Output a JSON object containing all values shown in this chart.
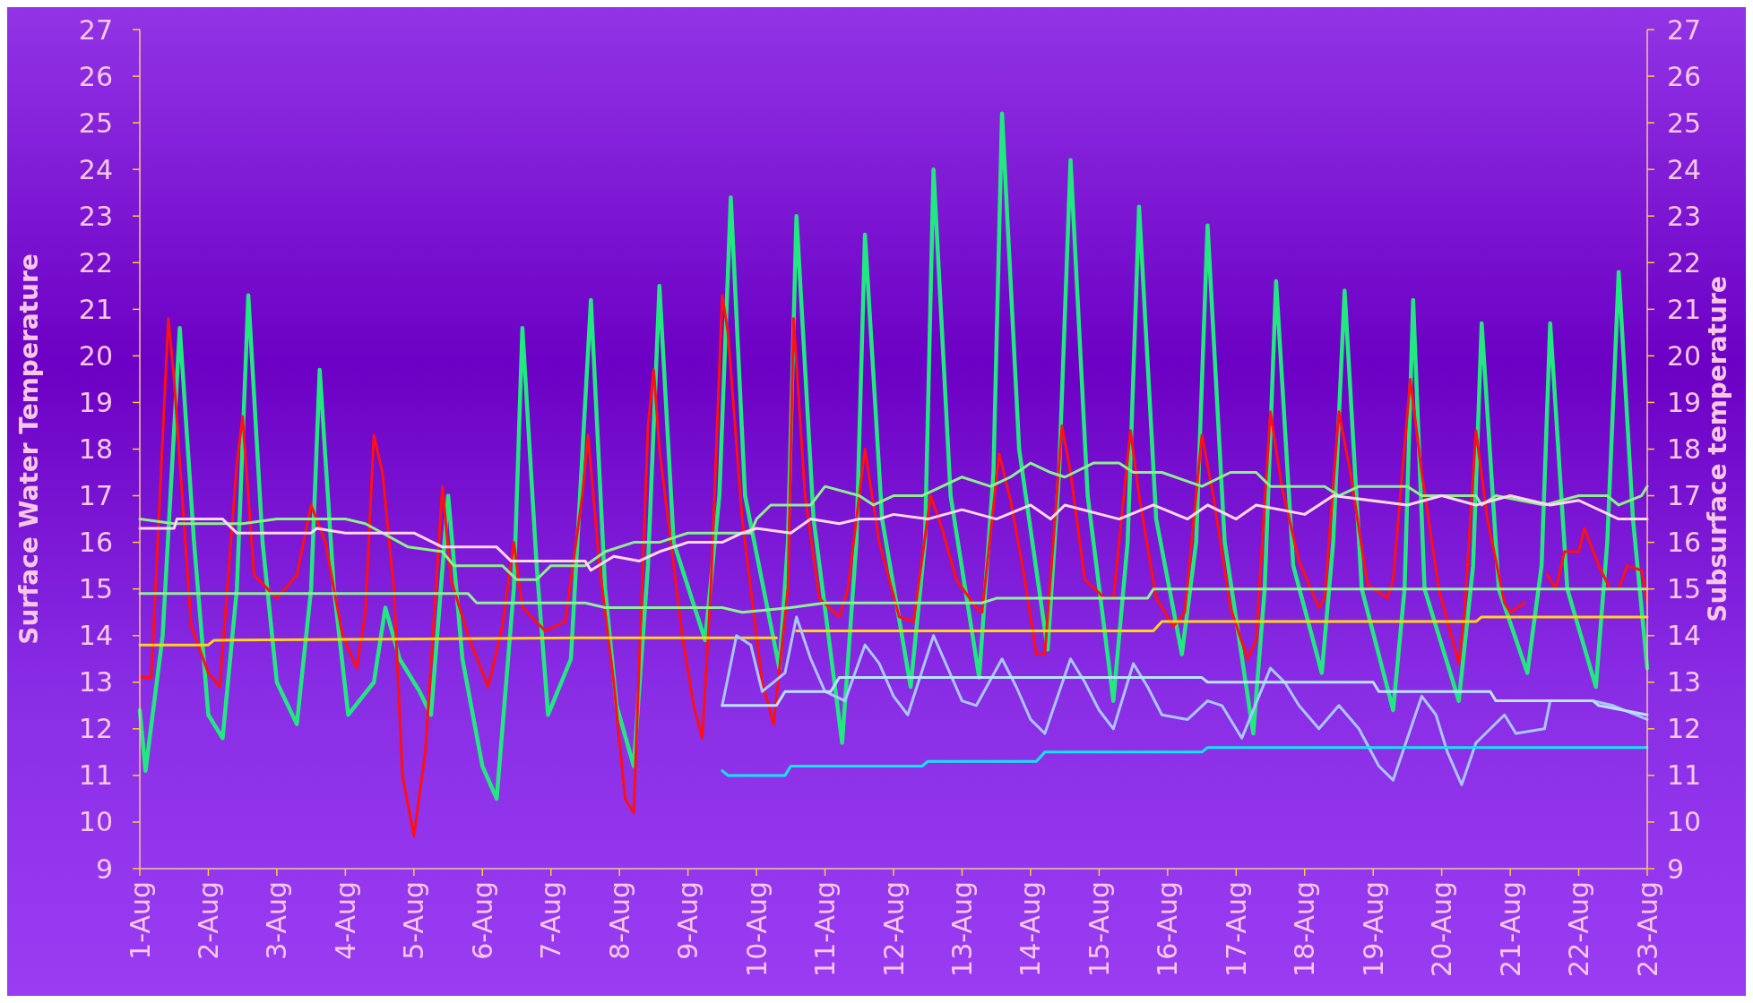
{
  "chart_data": {
    "type": "line",
    "ylabel": "Surface Water Temperature",
    "y2label": "Subsurface temperature",
    "xlim": [
      "--08-01",
      "--08-23"
    ],
    "ylim": [
      9,
      27
    ],
    "y2lim": [
      9,
      27
    ],
    "xticks": [
      {
        "value": "--08-01",
        "label": "1-Aug"
      },
      {
        "value": "--08-02",
        "label": "2-Aug"
      },
      {
        "value": "--08-03",
        "label": "3-Aug"
      },
      {
        "value": "--08-04",
        "label": "4-Aug"
      },
      {
        "value": "--08-05",
        "label": "5-Aug"
      },
      {
        "value": "--08-06",
        "label": "6-Aug"
      },
      {
        "value": "--08-07",
        "label": "7-Aug"
      },
      {
        "value": "--08-08",
        "label": "8-Aug"
      },
      {
        "value": "--08-09",
        "label": "9-Aug"
      },
      {
        "value": "--08-10",
        "label": "10-Aug"
      },
      {
        "value": "--08-11",
        "label": "11-Aug"
      },
      {
        "value": "--08-12",
        "label": "12-Aug"
      },
      {
        "value": "--08-13",
        "label": "13-Aug"
      },
      {
        "value": "--08-14",
        "label": "14-Aug"
      },
      {
        "value": "--08-15",
        "label": "15-Aug"
      },
      {
        "value": "--08-16",
        "label": "16-Aug"
      },
      {
        "value": "--08-17",
        "label": "17-Aug"
      },
      {
        "value": "--08-18",
        "label": "18-Aug"
      },
      {
        "value": "--08-19",
        "label": "19-Aug"
      },
      {
        "value": "--08-20",
        "label": "20-Aug"
      },
      {
        "value": "--08-21",
        "label": "21-Aug"
      },
      {
        "value": "--08-22",
        "label": "22-Aug"
      },
      {
        "value": "--08-23",
        "label": "23-Aug"
      }
    ],
    "yticks": [
      9,
      10,
      11,
      12,
      13,
      14,
      15,
      16,
      17,
      18,
      19,
      20,
      21,
      22,
      23,
      24,
      25,
      26,
      27
    ],
    "y2ticks": [
      9,
      10,
      11,
      12,
      13,
      14,
      15,
      16,
      17,
      18,
      19,
      20,
      21,
      22,
      23,
      24,
      25,
      26,
      27
    ],
    "grid": false,
    "series": [
      {
        "color": "#22e882",
        "x": [
          "--08-01T00:00",
          "--08-01T02:00",
          "--08-01T08:00",
          "--08-01T14:00",
          "--08-01T19:00",
          "--08-02T00:00",
          "--08-02T05:00",
          "--08-02T10:00",
          "--08-02T14:00",
          "--08-02T19:00",
          "--08-03T00:00",
          "--08-03T07:00",
          "--08-03T12:00",
          "--08-03T15:00",
          "--08-03T20:00",
          "--08-04T01:00",
          "--08-04T10:00",
          "--08-04T14:00",
          "--08-04T19:00",
          "--08-05T02:00",
          "--08-05T06:00",
          "--08-05T12:00",
          "--08-05T17:00",
          "--08-06T00:00",
          "--08-06T05:00",
          "--08-06T11:00",
          "--08-06T14:00",
          "--08-06T19:00",
          "--08-06T23:00",
          "--08-07T07:00",
          "--08-07T14:00",
          "--08-07T19:00",
          "--08-07T23:00",
          "--08-08T05:00",
          "--08-08T10:00",
          "--08-08T14:00",
          "--08-08T19:00",
          "--08-09T06:00",
          "--08-09T11:00",
          "--08-09T15:00",
          "--08-09T20:00",
          "--08-10T08:00",
          "--08-10T11:00",
          "--08-10T14:00",
          "--08-10T20:00",
          "--08-11T06:00",
          "--08-11T11:00",
          "--08-11T14:00",
          "--08-11T20:00",
          "--08-12T06:00",
          "--08-12T11:00",
          "--08-12T14:00",
          "--08-12T20:00",
          "--08-13T06:00",
          "--08-13T11:00",
          "--08-13T14:00",
          "--08-13T20:00",
          "--08-14T06:00",
          "--08-14T10:00",
          "--08-14T14:00",
          "--08-14T20:00",
          "--08-15T05:00",
          "--08-15T10:00",
          "--08-15T14:00",
          "--08-15T20:00",
          "--08-16T05:00",
          "--08-16T10:00",
          "--08-16T14:00",
          "--08-16T20:00",
          "--08-17T06:00",
          "--08-17T10:00",
          "--08-17T14:00",
          "--08-17T20:00",
          "--08-18T06:00",
          "--08-18T10:00",
          "--08-18T14:00",
          "--08-18T20:00",
          "--08-19T07:00",
          "--08-19T11:00",
          "--08-19T14:00",
          "--08-19T18:00",
          "--08-20T06:00",
          "--08-20T11:00",
          "--08-20T14:00",
          "--08-20T20:00",
          "--08-21T06:00",
          "--08-21T11:00",
          "--08-21T14:00",
          "--08-21T20:00",
          "--08-22T06:00",
          "--08-22T10:00",
          "--08-22T14:00",
          "--08-22T19:00",
          "--08-23T00:00"
        ],
        "values": [
          12.4,
          11.1,
          14.0,
          20.6,
          16.0,
          12.3,
          11.8,
          15.0,
          21.3,
          16.0,
          13.0,
          12.1,
          15.0,
          19.7,
          15.0,
          12.3,
          13.0,
          14.6,
          13.5,
          12.8,
          12.3,
          17.0,
          13.5,
          11.2,
          10.5,
          15.0,
          20.6,
          15.5,
          12.3,
          13.5,
          21.2,
          15.0,
          12.5,
          11.2,
          15.5,
          21.5,
          16.0,
          13.9,
          17.0,
          23.4,
          17.0,
          13.3,
          16.0,
          23.0,
          16.5,
          11.7,
          16.0,
          22.6,
          16.5,
          12.9,
          16.0,
          24.0,
          17.0,
          13.1,
          17.5,
          25.2,
          18.0,
          13.7,
          17.5,
          24.2,
          17.0,
          12.6,
          16.0,
          23.2,
          16.5,
          13.6,
          16.0,
          22.8,
          16.0,
          11.9,
          15.0,
          21.6,
          15.5,
          13.2,
          16.0,
          21.4,
          15.0,
          12.4,
          15.0,
          21.2,
          15.0,
          12.6,
          15.5,
          20.7,
          15.0,
          13.2,
          15.5,
          20.7,
          15.0,
          12.9,
          16.0,
          21.8,
          16.5,
          13.3
        ]
      },
      {
        "color": "#ff1010",
        "x": [
          "--08-01T00:00",
          "--08-01T04:00",
          "--08-01T10:00",
          "--08-01T12:00",
          "--08-01T18:00",
          "--08-02T00:00",
          "--08-02T04:00",
          "--08-02T10:00",
          "--08-02T12:00",
          "--08-02T16:00",
          "--08-03T00:00",
          "--08-03T07:00",
          "--08-03T12:00",
          "--08-03T17:00",
          "--08-03T23:00",
          "--08-04T04:00",
          "--08-04T07:00",
          "--08-04T10:00",
          "--08-04T13:00",
          "--08-04T17:00",
          "--08-04T20:00",
          "--08-05T00:00",
          "--08-05T04:00",
          "--08-05T10:00",
          "--08-05T13:00",
          "--08-05T19:00",
          "--08-06T02:00",
          "--08-06T07:00",
          "--08-06T11:00",
          "--08-06T14:00",
          "--08-06T22:00",
          "--08-07T05:00",
          "--08-07T11:00",
          "--08-07T13:00",
          "--08-07T17:00",
          "--08-07T22:00",
          "--08-08T02:00",
          "--08-08T05:00",
          "--08-08T10:00",
          "--08-08T12:00",
          "--08-08T14:00",
          "--08-08T22:00",
          "--08-09T02:00",
          "--08-09T05:00",
          "--08-09T08:00",
          "--08-09T12:00",
          "--08-09T14:00",
          "--08-09T19:00",
          "--08-10T02:00",
          "--08-10T06:00",
          "--08-10T11:00",
          "--08-10T13:00",
          "--08-10T17:00",
          "--08-10T22:00",
          "--08-11T05:00",
          "--08-11T08:00",
          "--08-11T14:00",
          "--08-11T19:00",
          "--08-12T02:00",
          "--08-12T07:00",
          "--08-12T13:00",
          "--08-12T17:00",
          "--08-12T22:00",
          "--08-13T05:00",
          "--08-13T07:00",
          "--08-13T13:00",
          "--08-13T17:00",
          "--08-13T22:00",
          "--08-14T02:00",
          "--08-14T05:00",
          "--08-14T11:00",
          "--08-14T14:00",
          "--08-14T19:00",
          "--08-15T02:00",
          "--08-15T05:00",
          "--08-15T11:00",
          "--08-15T14:00",
          "--08-15T20:00",
          "--08-16T02:00",
          "--08-16T06:00",
          "--08-16T12:00",
          "--08-16T16:00",
          "--08-16T22:00",
          "--08-17T04:00",
          "--08-17T07:00",
          "--08-17T12:00",
          "--08-17T16:00",
          "--08-17T22:00",
          "--08-18T05:00",
          "--08-18T07:00",
          "--08-18T12:00",
          "--08-18T16:00",
          "--08-18T22:00",
          "--08-19T05:00",
          "--08-19T07:00",
          "--08-19T13:00",
          "--08-19T17:00",
          "--08-19T23:00",
          "--08-20T06:00",
          "--08-20T08:00",
          "--08-20T12:00",
          "--08-20T16:00",
          "--08-20T22:00",
          "--08-21T00:00",
          "--08-21T05:00",
          "--08-21T08:00",
          "--08-21T13:00",
          "--08-21T16:00",
          "--08-21T19:00",
          "--08-22T00:00",
          "--08-22T02:00",
          "--08-22T07:00",
          "--08-22T11:00",
          "--08-22T14:00",
          "--08-22T17:00",
          "--08-22T22:00",
          "--08-23T00:00"
        ],
        "values": [
          13.1,
          13.1,
          20.8,
          19.5,
          14.2,
          13.2,
          12.9,
          17.7,
          18.7,
          15.3,
          14.8,
          15.3,
          16.8,
          16.0,
          14.0,
          13.3,
          14.5,
          18.3,
          17.5,
          15.0,
          11.0,
          9.7,
          11.5,
          17.2,
          15.2,
          14.0,
          12.9,
          14.2,
          16.0,
          14.6,
          14.1,
          14.3,
          17.0,
          18.3,
          15.5,
          13.0,
          10.5,
          10.2,
          18.5,
          19.7,
          18.0,
          14.0,
          12.5,
          11.8,
          15.0,
          21.3,
          20.5,
          16.5,
          13.0,
          12.1,
          15.0,
          20.8,
          17.0,
          14.8,
          14.4,
          15.0,
          18.0,
          16.0,
          14.4,
          14.3,
          17.0,
          16.3,
          15.2,
          14.6,
          14.5,
          17.9,
          16.9,
          15.2,
          13.6,
          13.6,
          18.5,
          17.5,
          15.2,
          14.8,
          14.8,
          18.4,
          17.0,
          14.8,
          14.2,
          14.5,
          18.3,
          17.0,
          14.6,
          13.5,
          13.9,
          18.8,
          17.2,
          15.6,
          14.6,
          14.8,
          18.8,
          17.5,
          15.1,
          14.8,
          15.2,
          19.5,
          17.5,
          15.0,
          13.4,
          14.5,
          18.4,
          16.5,
          14.7,
          14.5,
          14.7,
          null,
          15.3,
          15.0,
          15.8,
          15.8,
          16.3,
          15.5,
          15.0,
          15.0,
          15.5,
          15.4,
          14.7
        ]
      },
      {
        "color": "#8cf08c",
        "x": [
          "--08-01T00:00",
          "--08-01T12:00",
          "--08-02T12:00",
          "--08-03T00:00",
          "--08-04T00:00",
          "--08-04T07:00",
          "--08-04T22:00",
          "--08-05T10:00",
          "--08-05T14:00",
          "--08-06T07:00",
          "--08-06T12:00",
          "--08-06T19:00",
          "--08-07T00:00",
          "--08-07T12:00",
          "--08-07T19:00",
          "--08-08T05:00",
          "--08-08T14:00",
          "--08-09T00:00",
          "--08-09T22:00",
          "--08-10T00:00",
          "--08-10T05:00",
          "--08-10T19:00",
          "--08-11T00:00",
          "--08-11T12:00",
          "--08-11T17:00",
          "--08-12T00:00",
          "--08-12T10:00",
          "--08-12T17:00",
          "--08-13T00:00",
          "--08-13T10:00",
          "--08-13T17:00",
          "--08-14T00:00",
          "--08-14T07:00",
          "--08-14T12:00",
          "--08-14T22:00",
          "--08-15T07:00",
          "--08-15T12:00",
          "--08-15T22:00",
          "--08-16T12:00",
          "--08-16T22:00",
          "--08-17T07:00",
          "--08-17T12:00",
          "--08-18T07:00",
          "--08-18T12:00",
          "--08-18T19:00",
          "--08-19T12:00",
          "--08-19T17:00",
          "--08-20T12:00",
          "--08-20T14:00",
          "--08-20T19:00",
          "--08-21T12:00",
          "--08-22T00:00",
          "--08-22T10:00",
          "--08-22T14:00",
          "--08-22T22:00",
          "--08-23T00:00"
        ],
        "values": [
          16.5,
          16.4,
          16.4,
          16.5,
          16.5,
          16.4,
          15.9,
          15.8,
          15.5,
          15.5,
          15.2,
          15.2,
          15.5,
          15.5,
          15.8,
          16.0,
          16.0,
          16.2,
          16.2,
          16.5,
          16.8,
          16.8,
          17.2,
          17.0,
          16.8,
          17.0,
          17.0,
          17.2,
          17.4,
          17.2,
          17.4,
          17.7,
          17.5,
          17.4,
          17.7,
          17.7,
          17.5,
          17.5,
          17.2,
          17.5,
          17.5,
          17.2,
          17.2,
          17.0,
          17.2,
          17.2,
          17.0,
          17.0,
          16.8,
          17.0,
          16.8,
          17.0,
          17.0,
          16.8,
          17.0,
          17.2
        ]
      },
      {
        "color": "#ffd8ee",
        "x": [
          "--08-01T00:00",
          "--08-01T12:00",
          "--08-01T13:00",
          "--08-02T05:00",
          "--08-02T10:00",
          "--08-03T12:00",
          "--08-03T14:00",
          "--08-04T00:00",
          "--08-05T00:00",
          "--08-05T10:00",
          "--08-06T05:00",
          "--08-06T10:00",
          "--08-07T12:00",
          "--08-07T14:00",
          "--08-07T22:00",
          "--08-08T07:00",
          "--08-08T14:00",
          "--08-09T00:00",
          "--08-09T12:00",
          "--08-09T19:00",
          "--08-10T00:00",
          "--08-10T12:00",
          "--08-10T19:00",
          "--08-11T05:00",
          "--08-11T12:00",
          "--08-11T19:00",
          "--08-12T00:00",
          "--08-12T12:00",
          "--08-13T00:00",
          "--08-13T12:00",
          "--08-14T00:00",
          "--08-14T07:00",
          "--08-14T12:00",
          "--08-15T07:00",
          "--08-15T19:00",
          "--08-16T07:00",
          "--08-16T14:00",
          "--08-17T00:00",
          "--08-17T07:00",
          "--08-18T00:00",
          "--08-18T10:00",
          "--08-19T12:00",
          "--08-20T00:00",
          "--08-20T12:00",
          "--08-21T00:00",
          "--08-21T14:00",
          "--08-22T00:00",
          "--08-22T14:00",
          "--08-23T00:00"
        ],
        "values": [
          16.3,
          16.3,
          16.5,
          16.5,
          16.2,
          16.2,
          16.3,
          16.2,
          16.2,
          15.9,
          15.9,
          15.6,
          15.6,
          15.4,
          15.7,
          15.6,
          15.8,
          16.0,
          16.0,
          16.2,
          16.3,
          16.2,
          16.5,
          16.4,
          16.5,
          16.5,
          16.6,
          16.5,
          16.7,
          16.5,
          16.8,
          16.5,
          16.8,
          16.5,
          16.8,
          16.5,
          16.8,
          16.5,
          16.8,
          16.6,
          17.0,
          16.8,
          17.0,
          16.8,
          17.0,
          16.8,
          16.9,
          16.5,
          16.5
        ]
      },
      {
        "color": "#90f098",
        "x": [
          "--08-01T00:00",
          "--08-05T19:00",
          "--08-05T22:00",
          "--08-07T12:00",
          "--08-07T19:00",
          "--08-09T12:00",
          "--08-09T19:00",
          "--08-10T12:00",
          "--08-11T00:00",
          "--08-13T07:00",
          "--08-13T12:00",
          "--08-15T17:00",
          "--08-15T19:00",
          "--08-23T00:00"
        ],
        "values": [
          14.9,
          14.9,
          14.7,
          14.7,
          14.6,
          14.6,
          14.5,
          14.6,
          14.7,
          14.7,
          14.8,
          14.8,
          15.0,
          15.0
        ]
      },
      {
        "color": "#ffd21e",
        "x": [
          "--08-01T00:00",
          "--08-02T00:00",
          "--08-02T02:00",
          "--08-07T10:00",
          "--08-09T12:00",
          "--08-10T07:00",
          "--08-10T11:00",
          "--08-10T14:00",
          "--08-15T19:00",
          "--08-15T22:00",
          "--08-20T12:00",
          "--08-20T14:00",
          "--08-23T00:00"
        ],
        "values": [
          13.8,
          13.8,
          13.9,
          13.95,
          13.95,
          13.95,
          null,
          14.1,
          14.1,
          14.3,
          14.3,
          14.4,
          14.4
        ]
      },
      {
        "color": "#a8c8ff",
        "x": [
          "--08-09T12:00",
          "--08-09T17:00",
          "--08-09T22:00",
          "--08-10T02:00",
          "--08-10T10:00",
          "--08-10T14:00",
          "--08-10T19:00",
          "--08-11T00:00",
          "--08-11T07:00",
          "--08-11T14:00",
          "--08-11T19:00",
          "--08-12T00:00",
          "--08-12T05:00",
          "--08-12T14:00",
          "--08-12T19:00",
          "--08-13T00:00",
          "--08-13T05:00",
          "--08-13T14:00",
          "--08-13T19:00",
          "--08-14T00:00",
          "--08-14T05:00",
          "--08-14T14:00",
          "--08-14T19:00",
          "--08-15T00:00",
          "--08-15T05:00",
          "--08-15T12:00",
          "--08-15T17:00",
          "--08-15T22:00",
          "--08-16T07:00",
          "--08-16T14:00",
          "--08-16T19:00",
          "--08-17T02:00",
          "--08-17T12:00",
          "--08-17T17:00",
          "--08-17T22:00",
          "--08-18T05:00",
          "--08-18T12:00",
          "--08-18T19:00",
          "--08-19T02:00",
          "--08-19T07:00",
          "--08-19T12:00",
          "--08-19T17:00",
          "--08-19T22:00",
          "--08-20T02:00",
          "--08-20T07:00",
          "--08-20T12:00",
          "--08-20T22:00",
          "--08-21T02:00",
          "--08-21T12:00",
          "--08-21T14:00",
          "--08-22T05:00",
          "--08-22T12:00",
          "--08-23T00:00"
        ],
        "values": [
          12.5,
          14.0,
          13.8,
          12.8,
          13.2,
          14.4,
          13.5,
          12.8,
          12.6,
          13.8,
          13.4,
          12.7,
          12.3,
          14.0,
          13.3,
          12.6,
          12.5,
          13.5,
          12.9,
          12.2,
          11.9,
          13.5,
          13.0,
          12.4,
          12.0,
          13.4,
          12.9,
          12.3,
          12.2,
          12.6,
          12.5,
          11.8,
          13.3,
          13.0,
          12.5,
          12.0,
          12.5,
          12.0,
          11.2,
          10.9,
          11.8,
          12.7,
          12.3,
          11.5,
          10.8,
          11.7,
          12.3,
          11.9,
          12.0,
          12.6,
          12.6,
          12.5,
          12.2
        ]
      },
      {
        "color": "#b8e4ff",
        "x": [
          "--08-09T12:00",
          "--08-10T07:00",
          "--08-10T10:00",
          "--08-11T02:00",
          "--08-11T05:00",
          "--08-16T12:00",
          "--08-16T14:00",
          "--08-19T00:00",
          "--08-19T02:00",
          "--08-20T17:00",
          "--08-20T19:00",
          "--08-22T05:00",
          "--08-22T07:00",
          "--08-23T00:00"
        ],
        "values": [
          12.5,
          12.5,
          12.8,
          12.8,
          13.1,
          13.1,
          13.0,
          13.0,
          12.8,
          12.8,
          12.6,
          12.6,
          12.5,
          12.3
        ]
      },
      {
        "color": "#10e8f0",
        "x": [
          "--08-09T12:00",
          "--08-09T14:00",
          "--08-10T10:00",
          "--08-10T12:00",
          "--08-12T10:00",
          "--08-12T12:00",
          "--08-14T02:00",
          "--08-14T05:00",
          "--08-16T12:00",
          "--08-16T14:00",
          "--08-23T00:00"
        ],
        "values": [
          11.1,
          11.0,
          11.0,
          11.2,
          11.2,
          11.3,
          11.3,
          11.5,
          11.5,
          11.6,
          11.6
        ]
      }
    ]
  }
}
